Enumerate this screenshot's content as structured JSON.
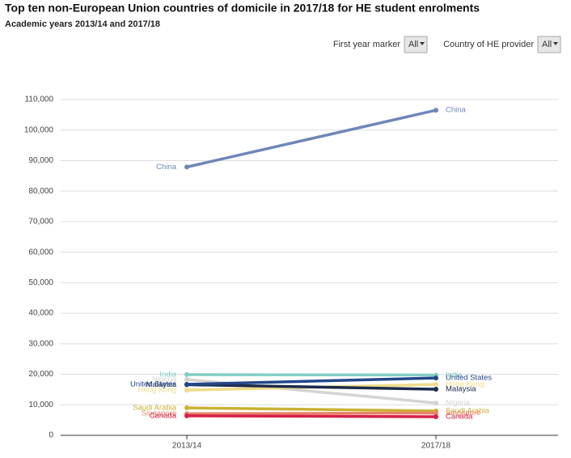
{
  "title": "Top ten non-European Union countries of domicile in 2017/18 for HE student enrolments",
  "subtitle": "Academic years 2013/14 and 2017/18",
  "controls": [
    {
      "label": "First year marker",
      "value": "All"
    },
    {
      "label": "Country of HE provider",
      "value": "All"
    }
  ],
  "chart_data": {
    "type": "line",
    "categories": [
      "2013/14",
      "2017/18"
    ],
    "series": [
      {
        "name": "Nigeria",
        "color": "#d4d4d4",
        "values": [
          18300,
          10600
        ]
      },
      {
        "name": "Hong Kong",
        "color": "#efdc8a",
        "values": [
          14800,
          16700
        ]
      },
      {
        "name": "India",
        "color": "#82cfc2",
        "values": [
          19900,
          19750
        ]
      },
      {
        "name": "Saudi Arabia",
        "color": "#c9b233",
        "values": [
          9000,
          8000
        ]
      },
      {
        "name": "Singapore",
        "color": "#e8846a",
        "values": [
          7100,
          7300
        ]
      },
      {
        "name": "Canada",
        "color": "#d6204a",
        "values": [
          6400,
          6100
        ]
      },
      {
        "name": "Malaysia",
        "color": "#1b2b4b",
        "values": [
          16600,
          15100
        ]
      },
      {
        "name": "United States",
        "color": "#24478a",
        "values": [
          16700,
          18800
        ]
      },
      {
        "name": "China",
        "color": "#6e87b8",
        "values": [
          87900,
          106500
        ]
      }
    ],
    "ylim": [
      0,
      110000
    ],
    "yticks": [
      0,
      {
        "value": 10000,
        "label": "10,000"
      },
      {
        "value": 20000,
        "label": "20,000"
      },
      {
        "value": 30000,
        "label": "30,000"
      },
      {
        "value": 40000,
        "label": "40,000"
      },
      {
        "value": 50000,
        "label": "50,000"
      },
      {
        "value": 60000,
        "label": "60,000"
      },
      {
        "value": 70000,
        "label": "70,000"
      },
      {
        "value": 80000,
        "label": "80,000"
      },
      {
        "value": 90000,
        "label": "90,000"
      },
      {
        "value": 100000,
        "label": "100,000"
      },
      {
        "value": 110000,
        "label": "110,000"
      }
    ],
    "grid": true
  }
}
